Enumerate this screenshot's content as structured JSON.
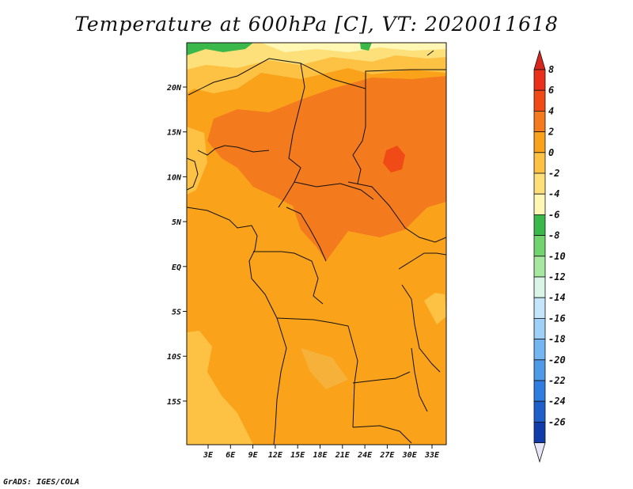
{
  "title": "Temperature at 600hPa [C], VT: 2020011618",
  "credit": "GrADS: IGES/COLA",
  "map": {
    "lat_labels": [
      "20N",
      "15N",
      "10N",
      "5N",
      "EQ",
      "5S",
      "10S",
      "15S"
    ],
    "lon_labels": [
      "3E",
      "6E",
      "9E",
      "12E",
      "15E",
      "18E",
      "21E",
      "24E",
      "27E",
      "30E",
      "33E"
    ],
    "region": "Central Africa"
  },
  "colorbar": {
    "labels": [
      "8",
      "6",
      "4",
      "2",
      "0",
      "-2",
      "-4",
      "-6",
      "-8",
      "-10",
      "-12",
      "-14",
      "-16",
      "-18",
      "-20",
      "-22",
      "-24",
      "-26"
    ],
    "colors": [
      "#e8301a",
      "#f04b16",
      "#f47a1e",
      "#f9a21a",
      "#fdc244",
      "#fde07a",
      "#fff7b3",
      "#3ab84a",
      "#73d46f",
      "#a6e8a0",
      "#d8f5e8",
      "#c5e5fb",
      "#9fd0f7",
      "#74b6f1",
      "#4f99e9",
      "#2f7ddf",
      "#1f5fc9",
      "#0f3ca8",
      "#071b70"
    ],
    "over_color": "#d7261e",
    "under_color": "#e6e6f7"
  }
}
